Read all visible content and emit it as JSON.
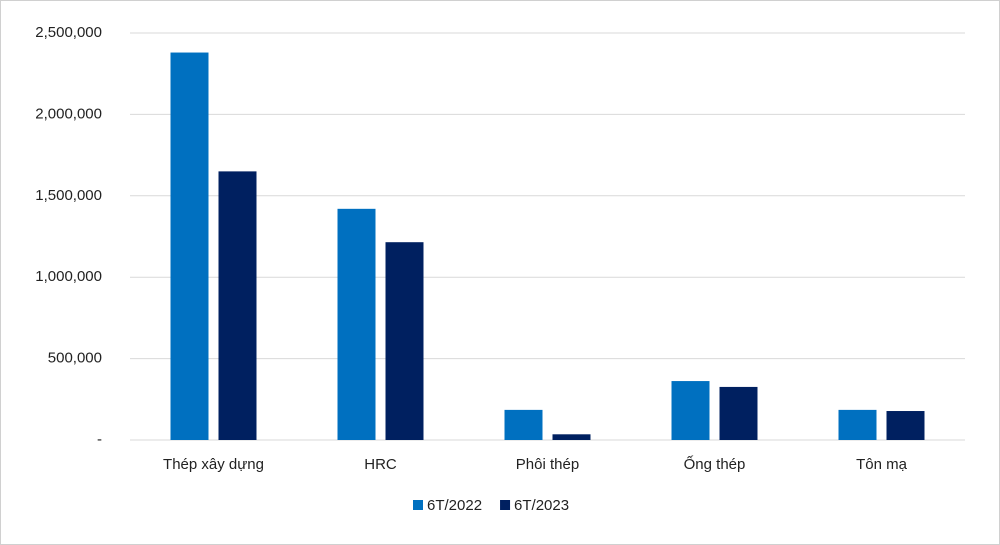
{
  "chart_data": {
    "type": "bar",
    "categories": [
      "Thép xây dựng",
      "HRC",
      "Phôi thép",
      "Ống thép",
      "Tôn mạ"
    ],
    "series": [
      {
        "name": "6T/2022",
        "color": "#0070c0",
        "values": [
          2380000,
          1420000,
          185000,
          362000,
          185000
        ]
      },
      {
        "name": "6T/2023",
        "color": "#002060",
        "values": [
          1650000,
          1215000,
          35000,
          326000,
          178000
        ]
      }
    ],
    "ylim": [
      0,
      2500000
    ],
    "yticks": [
      {
        "value": 0,
        "label": "-"
      },
      {
        "value": 500000,
        "label": "500,000"
      },
      {
        "value": 1000000,
        "label": "1,000,000"
      },
      {
        "value": 1500000,
        "label": "1,500,000"
      },
      {
        "value": 2000000,
        "label": "2,000,000"
      },
      {
        "value": 2500000,
        "label": "2,500,000"
      }
    ],
    "grid": true
  }
}
